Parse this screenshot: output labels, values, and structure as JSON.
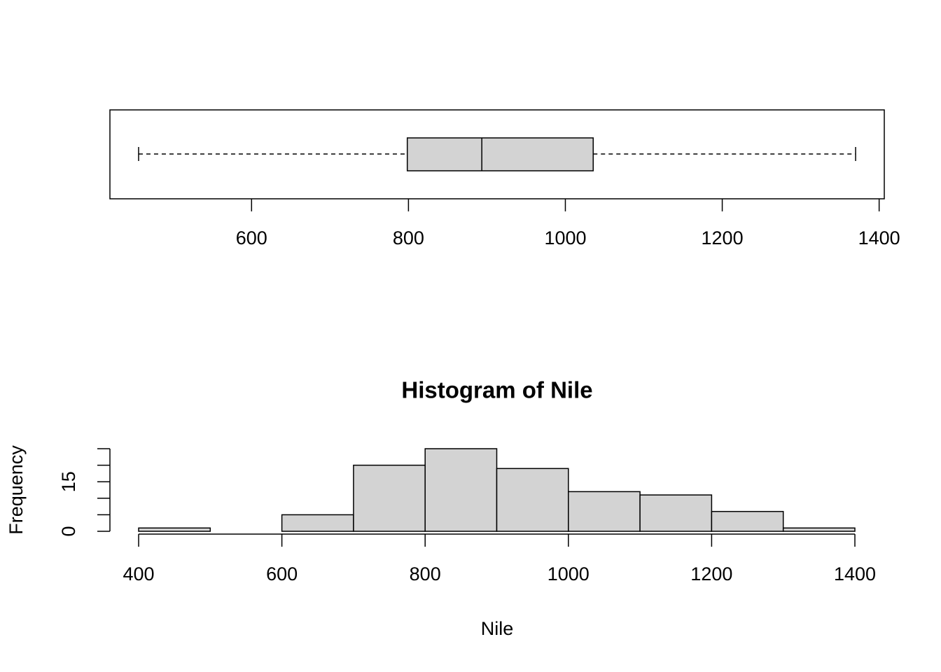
{
  "chart_data": [
    {
      "type": "boxplot",
      "min": 456,
      "q1": 798.5,
      "median": 893.5,
      "q3": 1035.5,
      "max": 1370,
      "xlim": [
        419.44,
        1406.56
      ],
      "xticks": [
        600,
        800,
        1000,
        1200,
        1400
      ],
      "color": "#d3d3d3"
    },
    {
      "type": "histogram",
      "title": "Histogram of Nile",
      "xlabel": "Nile",
      "ylabel": "Frequency",
      "bins": [
        400,
        500,
        600,
        700,
        800,
        900,
        1000,
        1100,
        1200,
        1300,
        1400
      ],
      "counts": [
        1,
        0,
        5,
        20,
        25,
        19,
        12,
        11,
        6,
        1
      ],
      "xlim": [
        400,
        1400
      ],
      "ylim": [
        0,
        25
      ],
      "xticks": [
        400,
        600,
        800,
        1000,
        1200,
        1400
      ],
      "yticks": [
        0,
        {
          "value": 5,
          "label": null
        },
        {
          "value": 10,
          "label": null
        },
        15,
        {
          "value": 20,
          "label": null
        },
        {
          "value": 25,
          "label": null
        }
      ],
      "color": "#d3d3d3"
    }
  ]
}
